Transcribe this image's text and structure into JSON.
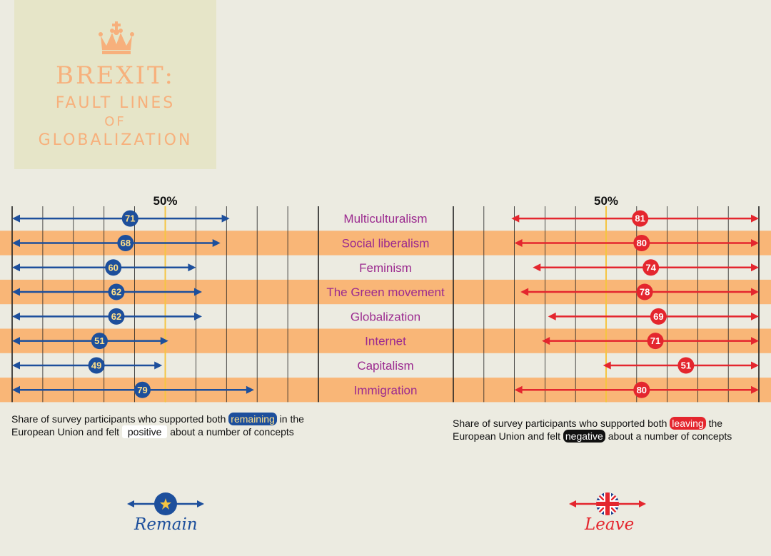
{
  "header": {
    "title_line1": "BREXIT:",
    "title_line2": "FAULT LINES",
    "title_line3": "OF",
    "title_line4": "GLOBALIZATION",
    "icon": "crown-icon"
  },
  "colors": {
    "remain": "#1d4f9c",
    "leave": "#e4262e",
    "label": "#9b2a8f",
    "stripe": "#f9b677",
    "midline": "#f5c542",
    "number_remain": "#ffe08a"
  },
  "chart_data": {
    "type": "bar",
    "categories": [
      "Multiculturalism",
      "Social liberalism",
      "Feminism",
      "The Green movement",
      "Globalization",
      "Internet",
      "Capitalism",
      "Immigration"
    ],
    "series": [
      {
        "name": "Remain",
        "values": [
          71,
          68,
          60,
          62,
          62,
          51,
          49,
          79
        ]
      },
      {
        "name": "Leave",
        "values": [
          81,
          80,
          74,
          78,
          69,
          71,
          51,
          80
        ]
      }
    ],
    "reference_label": "50%",
    "reference_value": 50,
    "xlim": [
      0,
      100
    ],
    "grid": true
  },
  "captions": {
    "left": {
      "pre": "Share of survey participants who supported both",
      "tag1": "remaining",
      "mid": "in the European Union and felt",
      "tag2": "positive",
      "post": "about a number of concepts"
    },
    "right": {
      "pre": "Share of survey participants who supported both",
      "tag1": "leaving",
      "mid": "the European Union and felt",
      "tag2": "negative",
      "post": "about a number of concepts"
    }
  },
  "legend": {
    "remain_label": "Remain",
    "leave_label": "Leave",
    "remain_icon": "eu-star-icon",
    "leave_icon": "union-jack-icon"
  }
}
